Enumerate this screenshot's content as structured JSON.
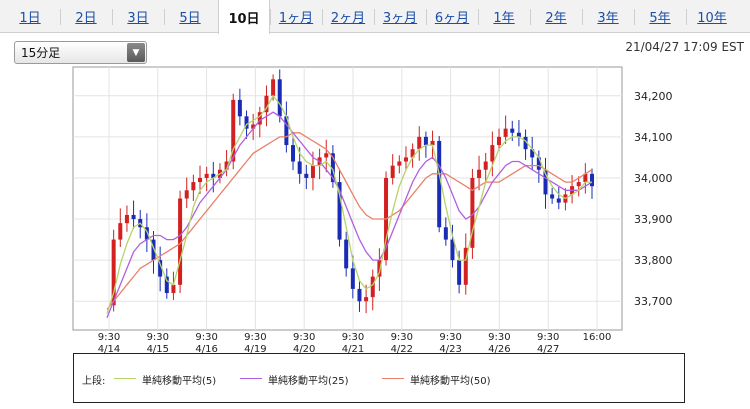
{
  "tabs": [
    {
      "label": "1日",
      "active": false
    },
    {
      "label": "2日",
      "active": false
    },
    {
      "label": "3日",
      "active": false
    },
    {
      "label": "5日",
      "active": false
    },
    {
      "label": "10日",
      "active": true
    },
    {
      "label": "1ヶ月",
      "active": false
    },
    {
      "label": "2ヶ月",
      "active": false
    },
    {
      "label": "3ヶ月",
      "active": false
    },
    {
      "label": "6ヶ月",
      "active": false
    },
    {
      "label": "1年",
      "active": false
    },
    {
      "label": "2年",
      "active": false
    },
    {
      "label": "3年",
      "active": false
    },
    {
      "label": "5年",
      "active": false
    },
    {
      "label": "10年",
      "active": false
    }
  ],
  "interval_select": {
    "value": "15分足"
  },
  "timestamp": "21/04/27 17:09 EST",
  "legend": {
    "prefix": "上段:",
    "items": [
      {
        "label": "単純移動平均(5)",
        "color": "#b5d46a"
      },
      {
        "label": "単純移動平均(25)",
        "color": "#b25fe0"
      },
      {
        "label": "単純移動平均(50)",
        "color": "#e8806a"
      }
    ]
  },
  "chart_data": {
    "type": "candlestick",
    "ylim": [
      33630,
      34270
    ],
    "y_ticks": [
      33700,
      33800,
      33900,
      34000,
      34100,
      34200
    ],
    "y_tick_labels": [
      "33,700",
      "33,800",
      "33,900",
      "34,000",
      "34,100",
      "34,200"
    ],
    "x_ticks": [
      {
        "time": "9:30",
        "date": "4/14"
      },
      {
        "time": "9:30",
        "date": "4/15"
      },
      {
        "time": "9:30",
        "date": "4/16"
      },
      {
        "time": "9:30",
        "date": "4/19"
      },
      {
        "time": "9:30",
        "date": "4/20"
      },
      {
        "time": "9:30",
        "date": "4/21"
      },
      {
        "time": "9:30",
        "date": "4/22"
      },
      {
        "time": "9:30",
        "date": "4/23"
      },
      {
        "time": "9:30",
        "date": "4/26"
      },
      {
        "time": "9:30",
        "date": "4/27"
      },
      {
        "time": "16:00",
        "date": ""
      }
    ],
    "up_color": "#d32020",
    "down_color": "#1a2bb5",
    "close_path": [
      33690,
      33850,
      33890,
      33910,
      33900,
      33880,
      33850,
      33800,
      33760,
      33720,
      33740,
      33950,
      33970,
      33990,
      34000,
      34010,
      34000,
      34020,
      34040,
      34190,
      34150,
      34120,
      34130,
      34160,
      34200,
      34240,
      34150,
      34080,
      34040,
      34010,
      34000,
      34030,
      34050,
      34060,
      33990,
      33850,
      33780,
      33730,
      33700,
      33710,
      33760,
      33800,
      34000,
      34030,
      34040,
      34050,
      34070,
      34100,
      34080,
      34090,
      33880,
      33850,
      33800,
      33740,
      33830,
      34000,
      34020,
      34040,
      34080,
      34100,
      34120,
      34110,
      34100,
      34070,
      34050,
      34020,
      33960,
      33950,
      33940,
      33960,
      33980,
      33990,
      34010,
      33980
    ],
    "ma5": [
      33670,
      33720,
      33790,
      33840,
      33880,
      33890,
      33870,
      33830,
      33790,
      33750,
      33740,
      33800,
      33860,
      33930,
      33970,
      33990,
      34000,
      34010,
      34020,
      34070,
      34100,
      34130,
      34140,
      34150,
      34170,
      34200,
      34180,
      34150,
      34100,
      34060,
      34040,
      34030,
      34030,
      34040,
      34020,
      33960,
      33880,
      33800,
      33750,
      33730,
      33740,
      33770,
      33850,
      33920,
      33980,
      34020,
      34050,
      34070,
      34080,
      34080,
      34010,
      33930,
      33860,
      33800,
      33800,
      33870,
      33930,
      33990,
      34030,
      34070,
      34090,
      34100,
      34100,
      34090,
      34070,
      34050,
      34010,
      33980,
      33960,
      33950,
      33960,
      33970,
      33990,
      33990
    ],
    "ma25": [
      33660,
      33700,
      33740,
      33780,
      33820,
      33840,
      33850,
      33860,
      33860,
      33850,
      33850,
      33860,
      33880,
      33910,
      33940,
      33960,
      33980,
      34000,
      34020,
      34050,
      34080,
      34100,
      34120,
      34140,
      34150,
      34160,
      34150,
      34130,
      34110,
      34090,
      34070,
      34050,
      34040,
      34020,
      34000,
      33970,
      33930,
      33890,
      33850,
      33820,
      33800,
      33800,
      33830,
      33870,
      33910,
      33950,
      33990,
      34020,
      34040,
      34050,
      34030,
      34000,
      33960,
      33920,
      33900,
      33910,
      33930,
      33960,
      33990,
      34010,
      34030,
      34040,
      34040,
      34030,
      34020,
      34010,
      34000,
      33990,
      33980,
      33970,
      33970,
      33970,
      33980,
      33990
    ],
    "ma50": [
      33680,
      33700,
      33720,
      33740,
      33760,
      33780,
      33790,
      33800,
      33810,
      33820,
      33830,
      33840,
      33860,
      33880,
      33900,
      33920,
      33940,
      33960,
      33980,
      34000,
      34020,
      34040,
      34060,
      34070,
      34080,
      34090,
      34100,
      34100,
      34110,
      34110,
      34100,
      34090,
      34080,
      34070,
      34050,
      34020,
      33990,
      33960,
      33930,
      33910,
      33900,
      33900,
      33900,
      33910,
      33920,
      33940,
      33960,
      33980,
      34000,
      34010,
      34010,
      34010,
      34000,
      33990,
      33980,
      33970,
      33980,
      33990,
      33990,
      33990,
      34000,
      34010,
      34020,
      34030,
      34030,
      34030,
      34020,
      34010,
      34000,
      33990,
      33990,
      34000,
      34010,
      34020
    ]
  }
}
